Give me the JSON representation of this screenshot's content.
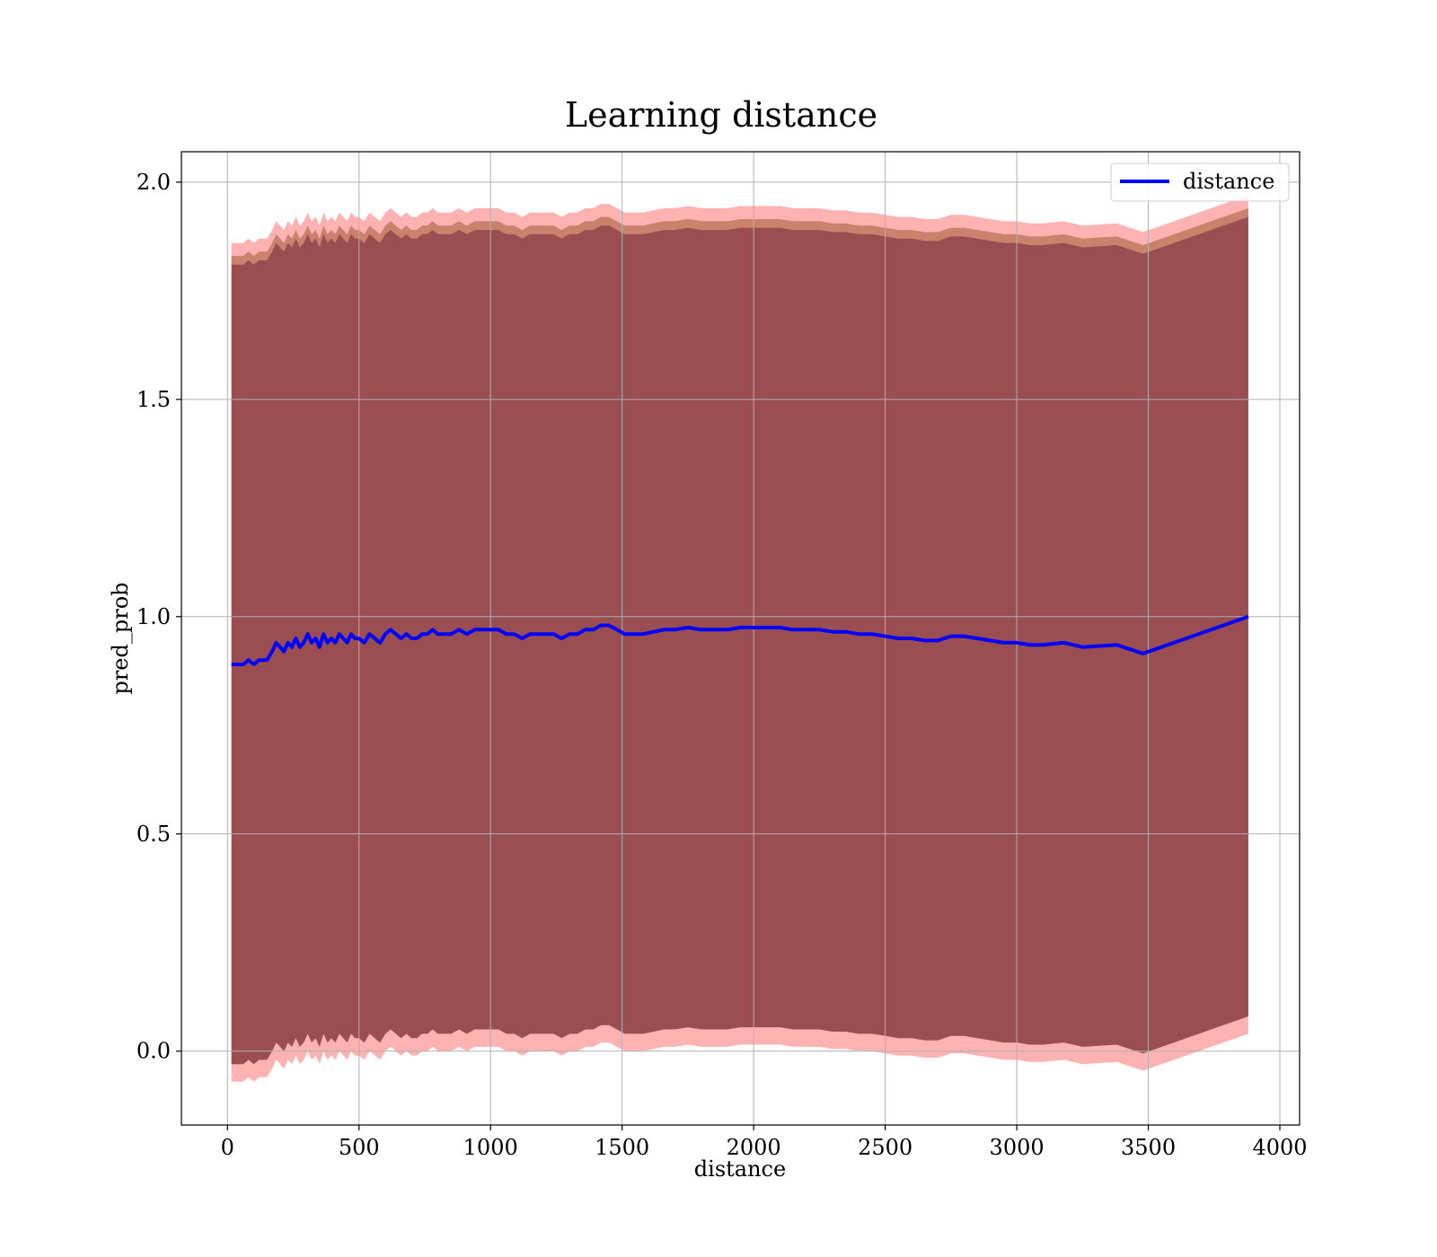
{
  "chart_data": {
    "type": "line",
    "title": "Learning distance",
    "xlabel": "distance",
    "ylabel": "pred_prob",
    "xlim": [
      -175,
      4075
    ],
    "ylim": [
      -0.17,
      2.07
    ],
    "xticks": [
      0,
      500,
      1000,
      1500,
      2000,
      2500,
      3000,
      3500,
      4000
    ],
    "xtick_labels": [
      "0",
      "500",
      "1000",
      "1500",
      "2000",
      "2500",
      "3000",
      "3500",
      "4000"
    ],
    "yticks": [
      0.0,
      0.5,
      1.0,
      1.5,
      2.0
    ],
    "ytick_labels": [
      "0.0",
      "0.5",
      "1.0",
      "1.5",
      "2.0"
    ],
    "grid": true,
    "legend_position": "top-right",
    "series": [
      {
        "name": "distance",
        "color": "#0000ff",
        "x": [
          15,
          60,
          80,
          100,
          120,
          150,
          170,
          185,
          200,
          215,
          230,
          245,
          260,
          275,
          290,
          305,
          320,
          335,
          350,
          365,
          380,
          395,
          410,
          425,
          440,
          455,
          470,
          485,
          500,
          520,
          540,
          560,
          580,
          600,
          620,
          640,
          660,
          680,
          700,
          720,
          740,
          760,
          780,
          800,
          820,
          850,
          880,
          910,
          940,
          970,
          1000,
          1030,
          1060,
          1090,
          1120,
          1150,
          1180,
          1210,
          1240,
          1270,
          1300,
          1330,
          1360,
          1390,
          1420,
          1450,
          1480,
          1510,
          1540,
          1580,
          1620,
          1660,
          1700,
          1750,
          1800,
          1850,
          1900,
          1950,
          2000,
          2050,
          2100,
          2150,
          2200,
          2250,
          2300,
          2350,
          2400,
          2450,
          2500,
          2550,
          2600,
          2650,
          2700,
          2750,
          2800,
          2850,
          2900,
          2950,
          3000,
          3050,
          3100,
          3180,
          3250,
          3380,
          3480,
          3880
        ],
        "y": [
          0.89,
          0.89,
          0.9,
          0.89,
          0.9,
          0.9,
          0.92,
          0.94,
          0.93,
          0.92,
          0.94,
          0.93,
          0.95,
          0.93,
          0.94,
          0.96,
          0.94,
          0.95,
          0.93,
          0.96,
          0.94,
          0.95,
          0.94,
          0.96,
          0.95,
          0.94,
          0.96,
          0.95,
          0.95,
          0.94,
          0.96,
          0.95,
          0.94,
          0.96,
          0.97,
          0.96,
          0.95,
          0.96,
          0.95,
          0.95,
          0.96,
          0.96,
          0.97,
          0.96,
          0.96,
          0.96,
          0.97,
          0.96,
          0.97,
          0.97,
          0.97,
          0.97,
          0.96,
          0.96,
          0.95,
          0.96,
          0.96,
          0.96,
          0.96,
          0.95,
          0.96,
          0.96,
          0.97,
          0.97,
          0.98,
          0.98,
          0.97,
          0.96,
          0.96,
          0.96,
          0.965,
          0.97,
          0.97,
          0.975,
          0.97,
          0.97,
          0.97,
          0.975,
          0.975,
          0.975,
          0.975,
          0.97,
          0.97,
          0.97,
          0.965,
          0.965,
          0.96,
          0.96,
          0.955,
          0.95,
          0.95,
          0.945,
          0.945,
          0.955,
          0.955,
          0.95,
          0.945,
          0.94,
          0.94,
          0.935,
          0.935,
          0.94,
          0.93,
          0.935,
          0.915,
          1.0
        ]
      }
    ],
    "bands": [
      {
        "name": "outer band",
        "color": "#ff0000",
        "opacity": 0.3,
        "lower_offset": -0.96,
        "upper_offset": 0.97
      },
      {
        "name": "middle band",
        "color": "#8b4513",
        "opacity": 0.45,
        "lower_offset": -0.92,
        "upper_offset": 0.94
      },
      {
        "name": "inner band",
        "color": "#6a1b3a",
        "opacity": 0.5,
        "lower_offset": -0.92,
        "upper_offset": 0.92
      }
    ]
  }
}
